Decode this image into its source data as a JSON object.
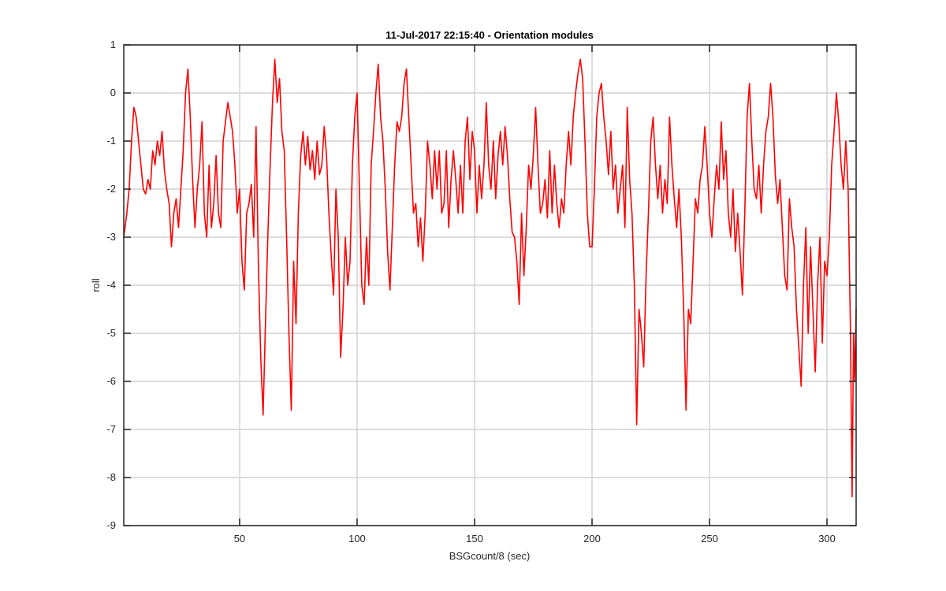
{
  "chart_data": {
    "type": "line",
    "title": "11-Jul-2017 22:15:40 - Orientation modules",
    "xlabel": "BSGcount/8 (sec)",
    "ylabel": "roll",
    "xlim": [
      0.7,
      312.4
    ],
    "ylim": [
      -9,
      1
    ],
    "xticks": [
      50,
      100,
      150,
      200,
      250,
      300
    ],
    "yticks": [
      -9,
      -8,
      -7,
      -6,
      -5,
      -4,
      -3,
      -2,
      -1,
      0,
      1
    ],
    "grid": true,
    "x": [
      0.7,
      2,
      3,
      4,
      5,
      6,
      7,
      8,
      9,
      10,
      11,
      12,
      13,
      14,
      15,
      16,
      17,
      18,
      19,
      20,
      21,
      22,
      23,
      24,
      25,
      26,
      27,
      28,
      29,
      30,
      31,
      32,
      33,
      34,
      35,
      36,
      37,
      38,
      39,
      40,
      41,
      42,
      43,
      44,
      45,
      46,
      47,
      48,
      49,
      50,
      51,
      52,
      53,
      54,
      55,
      56,
      57,
      58,
      59,
      60,
      61,
      62,
      63,
      64,
      65,
      66,
      67,
      68,
      69,
      70,
      71,
      72,
      73,
      74,
      75,
      76,
      77,
      78,
      79,
      80,
      81,
      82,
      83,
      84,
      85,
      86,
      87,
      88,
      89,
      90,
      91,
      92,
      93,
      94,
      95,
      96,
      97,
      98,
      99,
      100,
      101,
      102,
      103,
      104,
      105,
      106,
      107,
      108,
      109,
      110,
      111,
      112,
      113,
      114,
      115,
      116,
      117,
      118,
      119,
      120,
      121,
      122,
      123,
      124,
      125,
      126,
      127,
      128,
      129,
      130,
      131,
      132,
      133,
      134,
      135,
      136,
      137,
      138,
      139,
      140,
      141,
      142,
      143,
      144,
      145,
      146,
      147,
      148,
      149,
      150,
      151,
      152,
      153,
      154,
      155,
      156,
      157,
      158,
      159,
      160,
      161,
      162,
      163,
      164,
      165,
      166,
      167,
      168,
      169,
      170,
      171,
      172,
      173,
      174,
      175,
      176,
      177,
      178,
      179,
      180,
      181,
      182,
      183,
      184,
      185,
      186,
      187,
      188,
      189,
      190,
      191,
      192,
      193,
      194,
      195,
      196,
      197,
      198,
      199,
      200,
      201,
      202,
      203,
      204,
      205,
      206,
      207,
      208,
      209,
      210,
      211,
      212,
      213,
      214,
      215,
      216,
      217,
      218,
      219,
      220,
      221,
      222,
      223,
      224,
      225,
      226,
      227,
      228,
      229,
      230,
      231,
      232,
      233,
      234,
      235,
      236,
      237,
      238,
      239,
      240,
      241,
      242,
      243,
      244,
      245,
      246,
      247,
      248,
      249,
      250,
      251,
      252,
      253,
      254,
      255,
      256,
      257,
      258,
      259,
      260,
      261,
      262,
      263,
      264,
      265,
      266,
      267,
      268,
      269,
      270,
      271,
      272,
      273,
      274,
      275,
      276,
      277,
      278,
      279,
      280,
      281,
      282,
      283,
      284,
      285,
      286,
      287,
      288,
      289,
      290,
      291,
      292,
      293,
      294,
      295,
      296,
      297,
      298,
      299,
      300,
      301,
      302,
      303,
      304,
      305,
      306,
      307,
      308,
      309,
      310,
      310.7,
      311.3,
      311.8,
      312.4
    ],
    "series": [
      {
        "color": "#ff0000",
        "values": [
          -3,
          -2.5,
          -2,
          -1,
          -0.3,
          -0.5,
          -1,
          -1.5,
          -2,
          -2.1,
          -1.8,
          -2,
          -1.2,
          -1.5,
          -1,
          -1.3,
          -0.8,
          -1.6,
          -2,
          -2.3,
          -3.2,
          -2.5,
          -2.2,
          -2.8,
          -2,
          -1.2,
          0,
          0.5,
          -0.5,
          -1.8,
          -2.8,
          -2,
          -1.5,
          -0.6,
          -2.5,
          -3,
          -1.5,
          -2.8,
          -2.3,
          -1.3,
          -2.5,
          -2.8,
          -1,
          -0.6,
          -0.2,
          -0.5,
          -0.8,
          -1.5,
          -2.5,
          -2,
          -3.5,
          -4.1,
          -2.5,
          -2.3,
          -1.9,
          -3,
          -0.7,
          -3.6,
          -5.5,
          -6.7,
          -4.8,
          -3,
          -1.5,
          -0.2,
          0.7,
          -0.2,
          0.3,
          -0.8,
          -1.2,
          -3,
          -5,
          -6.6,
          -3.5,
          -4.8,
          -2.5,
          -1.3,
          -0.8,
          -1.5,
          -0.9,
          -1.6,
          -1.2,
          -1.8,
          -1,
          -1.7,
          -1.5,
          -0.7,
          -1.3,
          -2.5,
          -3.4,
          -4.2,
          -2,
          -3,
          -5.5,
          -4.5,
          -3,
          -4,
          -3.5,
          -1.5,
          -0.5,
          0,
          -2,
          -4,
          -4.4,
          -3,
          -4,
          -1.5,
          -0.8,
          0,
          0.6,
          -0.5,
          -1,
          -2,
          -3.3,
          -4.1,
          -2.8,
          -1.5,
          -0.6,
          -0.8,
          -0.5,
          0.2,
          0.5,
          -0.5,
          -1.5,
          -2.5,
          -2.3,
          -3.2,
          -2.6,
          -3.5,
          -2.5,
          -1,
          -1.5,
          -2.2,
          -1.2,
          -2,
          -1.2,
          -2.5,
          -2.3,
          -1.2,
          -2.8,
          -1.8,
          -1.2,
          -1.8,
          -2.5,
          -1.5,
          -2.5,
          -1,
          -0.5,
          -1.8,
          -0.8,
          -1.2,
          -2.5,
          -1.5,
          -2.2,
          -1.5,
          -0.2,
          -1.5,
          -2,
          -1,
          -2.2,
          -1.3,
          -0.8,
          -1.5,
          -0.7,
          -1.3,
          -2.2,
          -2.9,
          -3,
          -3.5,
          -4.4,
          -2.5,
          -3.8,
          -2.8,
          -1.5,
          -2,
          -1.3,
          -0.3,
          -1.5,
          -2.5,
          -2.3,
          -1.8,
          -2.6,
          -1.2,
          -2.5,
          -1.5,
          -2.3,
          -2.8,
          -2.2,
          -2.5,
          -1.5,
          -0.8,
          -1.5,
          -0.5,
          0,
          0.4,
          0.7,
          0.3,
          -1,
          -2.5,
          -3.2,
          -3.2,
          -2,
          -0.5,
          0,
          0.2,
          -0.5,
          -1,
          -1.7,
          -0.8,
          -2,
          -1.5,
          -2.5,
          -2,
          -1.5,
          -2.8,
          -0.3,
          -1.8,
          -2.5,
          -4,
          -6.9,
          -4.5,
          -5,
          -5.7,
          -3.8,
          -2.5,
          -1,
          -0.5,
          -1.5,
          -2.2,
          -1.5,
          -2.5,
          -1.8,
          -2.3,
          -0.5,
          -1.5,
          -2.2,
          -2.8,
          -2,
          -3,
          -4.5,
          -6.6,
          -4.5,
          -4.8,
          -3.5,
          -2.2,
          -2.5,
          -1.8,
          -1.5,
          -0.7,
          -1.5,
          -2.5,
          -3,
          -2.2,
          -1.5,
          -2,
          -0.6,
          -1.8,
          -1.2,
          -2.5,
          -3,
          -2,
          -3.3,
          -2.5,
          -3.3,
          -4.2,
          -2.5,
          -0.5,
          0.2,
          -1,
          -2,
          -2.2,
          -1.5,
          -2.5,
          -1.5,
          -0.8,
          -0.5,
          0.2,
          -0.5,
          -1.7,
          -2.3,
          -1.8,
          -2.8,
          -3.8,
          -4.1,
          -2.2,
          -2.8,
          -3.2,
          -4.5,
          -5.3,
          -6.1,
          -4,
          -2.8,
          -5,
          -3.2,
          -4.5,
          -5.8,
          -4,
          -3,
          -5.2,
          -3.5,
          -3.8,
          -3,
          -1.5,
          -0.8,
          0,
          -0.6,
          -1.5,
          -2,
          -1,
          -2,
          -5,
          -8.4,
          -5,
          -6,
          -4.5
        ]
      }
    ]
  }
}
